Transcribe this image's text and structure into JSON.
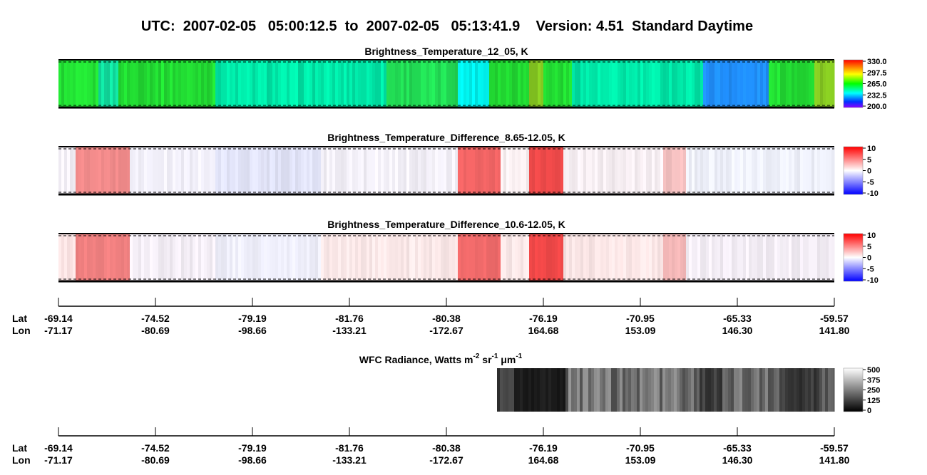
{
  "header": {
    "title": "UTC:  2007-02-05   05:00:12.5  to  2007-02-05   05:13:41.9    Version: 4.51  Standard Daytime"
  },
  "panels": [
    {
      "title": "Brightness_Temperature_12_05, K",
      "colorbar_ticks": [
        "330.0",
        "297.5",
        "265.0",
        "232.5",
        "200.0"
      ]
    },
    {
      "title": "Brightness_Temperature_Difference_8.65-12.05, K",
      "colorbar_ticks": [
        "10",
        "5",
        "0",
        "-5",
        "-10"
      ]
    },
    {
      "title": "Brightness_Temperature_Difference_10.6-12.05, K",
      "colorbar_ticks": [
        "10",
        "5",
        "0",
        "-5",
        "-10"
      ]
    }
  ],
  "wfc": {
    "title_parts": [
      "WFC Radiance, Watts m",
      "-2",
      " sr",
      "-1",
      " μm",
      "-1"
    ],
    "colorbar_ticks": [
      "500",
      "375",
      "250",
      "125",
      "0"
    ]
  },
  "axes": [
    {
      "lat_label": "Lat",
      "lon_label": "Lon",
      "lat": [
        "-69.14",
        "-74.52",
        "-79.19",
        "-81.76",
        "-80.38",
        "-76.19",
        "-70.95",
        "-65.33",
        "-59.57"
      ],
      "lon": [
        "-71.17",
        "-80.69",
        "-98.66",
        "-133.21",
        "-172.67",
        "164.68",
        "153.09",
        "146.30",
        "141.80"
      ]
    },
    {
      "lat_label": "Lat",
      "lon_label": "Lon",
      "lat": [
        "-69.14",
        "-74.52",
        "-79.19",
        "-81.76",
        "-80.38",
        "-76.19",
        "-70.95",
        "-65.33",
        "-59.57"
      ],
      "lon": [
        "-71.17",
        "-80.69",
        "-98.66",
        "-133.21",
        "-172.67",
        "164.68",
        "153.09",
        "146.30",
        "141.80"
      ]
    }
  ]
}
